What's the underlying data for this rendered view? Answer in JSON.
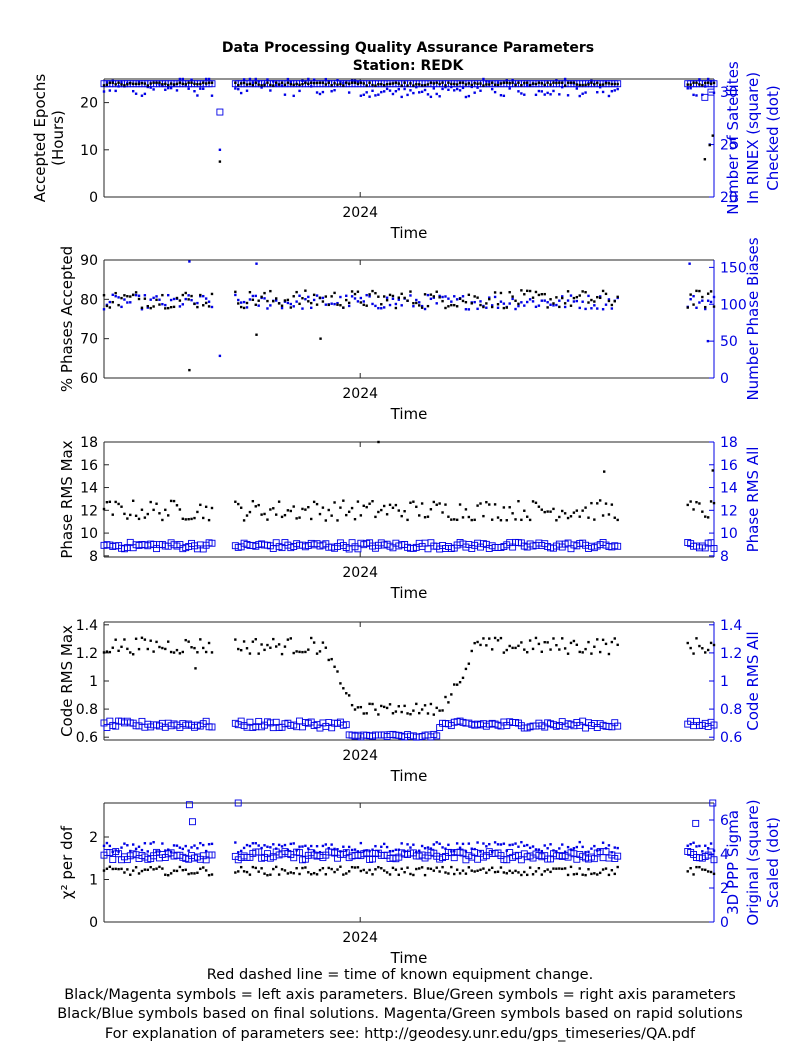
{
  "title": "Data Processing Quality Assurance Parameters",
  "subtitle": "Station: REDK",
  "footer_lines": [
    "Red dashed line = time of known equipment change.",
    "Black/Magenta symbols = left axis parameters. Blue/Green symbols = right axis parameters",
    "Black/Blue symbols based on final solutions.  Magenta/Green symbols based on rapid solutions",
    "For explanation of parameters see: http://geodesy.unr.edu/gps_timeseries/QA.pdf"
  ],
  "colors": {
    "left": "#000000",
    "right": "#0000e6",
    "axis": "#000000",
    "right_axis": "#0000e6"
  },
  "chart_data": [
    {
      "type": "scatter",
      "x_tick_label": "2024",
      "xlabel": "Time",
      "ylabel_left": [
        "Accepted Epochs",
        "(Hours)"
      ],
      "ylabel_right": [
        "Number of Satellites",
        "In RINEX (square)",
        "Checked (dot)"
      ],
      "ylim_left": [
        0,
        25
      ],
      "yticks_left": [
        0,
        10,
        20
      ],
      "ylim_right": [
        20,
        31.25
      ],
      "yticks_right": [
        20,
        25,
        30
      ],
      "segments": [
        [
          0.0,
          0.38
        ],
        [
          0.43,
          1.0
        ],
        [
          0.455,
          1.0
        ],
        [
          0.0,
          0.0
        ]
      ],
      "left_series": {
        "name": "",
        "marker": "dot",
        "base": 24,
        "noise": 0.4,
        "dips": [
          [
            0.19,
            7.5
          ],
          [
            0.985,
            8
          ],
          [
            0.993,
            11
          ],
          [
            0.998,
            13
          ]
        ]
      },
      "right_series": [
        {
          "name": "",
          "marker": "square",
          "base": 30.8,
          "noise": 0.0,
          "dips": [
            [
              0.19,
              28.1
            ],
            [
              0.985,
              29.5
            ],
            [
              0.995,
              30
            ]
          ]
        },
        {
          "name": "",
          "marker": "dot",
          "base": 30.5,
          "noise": 0.9,
          "dips": [
            [
              0.19,
              24.5
            ],
            [
              0.993,
              25
            ]
          ]
        }
      ]
    },
    {
      "type": "scatter",
      "x_tick_label": "2024",
      "xlabel": "Time",
      "ylabel_left": [
        "% Phases Accepted"
      ],
      "ylabel_right": [
        "Number Phase Biases"
      ],
      "ylim_left": [
        60,
        90
      ],
      "yticks_left": [
        60,
        70,
        80,
        90
      ],
      "ylim_right": [
        0,
        160
      ],
      "yticks_right": [
        0,
        50,
        100,
        150
      ],
      "left_series": {
        "name": "",
        "marker": "dot",
        "base": 80,
        "noise": 2.3,
        "dips": [
          [
            0.14,
            62
          ],
          [
            0.25,
            71
          ],
          [
            0.355,
            70
          ]
        ]
      },
      "right_series": [
        {
          "name": "",
          "marker": "dot",
          "base": 103,
          "noise": 10,
          "dips": [
            [
              0.14,
              158
            ],
            [
              0.19,
              30
            ],
            [
              0.25,
              155
            ],
            [
              0.96,
              155
            ],
            [
              0.99,
              50
            ]
          ]
        }
      ]
    },
    {
      "type": "scatter",
      "x_tick_label": "2024",
      "xlabel": "Time",
      "ylabel_left": [
        "Phase RMS Max"
      ],
      "ylabel_right": [
        "Phase RMS All"
      ],
      "ylim_left": [
        7.9,
        18
      ],
      "yticks_left": [
        8,
        10,
        12,
        14,
        16,
        18
      ],
      "ylim_right": [
        7.9,
        18
      ],
      "yticks_right": [
        8,
        10,
        12,
        14,
        16,
        18
      ],
      "left_series": {
        "name": "",
        "marker": "dot",
        "base": 12,
        "noise": 0.9,
        "dips": [
          [
            0.45,
            18
          ],
          [
            0.82,
            15.4
          ],
          [
            0.998,
            15.5
          ]
        ]
      },
      "right_series": [
        {
          "name": "",
          "marker": "square",
          "base": 8.9,
          "noise": 0.3,
          "dips": []
        }
      ]
    },
    {
      "type": "scatter",
      "x_tick_label": "2024",
      "xlabel": "Time",
      "ylabel_left": [
        "Code RMS Max"
      ],
      "ylabel_right": [
        "Code RMS All"
      ],
      "ylim_left": [
        0.58,
        1.42
      ],
      "yticks_left": [
        0.6,
        0.8,
        1.0,
        1.2,
        1.4
      ],
      "ylim_right": [
        0.58,
        1.42
      ],
      "yticks_right": [
        0.6,
        0.8,
        1.0,
        1.2,
        1.4
      ],
      "left_series": {
        "name": "",
        "marker": "dot",
        "base": 1.25,
        "noise": 0.06,
        "dips": [
          [
            0.15,
            1.09
          ]
        ]
      },
      "right_series": [
        {
          "name": "",
          "marker": "square",
          "base": 0.69,
          "noise": 0.025,
          "dips": []
        }
      ]
    },
    {
      "type": "scatter",
      "x_tick_label": "2024",
      "xlabel": "Time",
      "ylabel_left": [
        "χ² per dof"
      ],
      "ylabel_right": [
        "3D PPP Sigma",
        "Original (square)",
        "Scaled (dot)"
      ],
      "ylim_left": [
        0,
        2.8
      ],
      "yticks_left": [
        0,
        1,
        2
      ],
      "ylim_right": [
        0,
        7
      ],
      "yticks_right": [
        0,
        2,
        4,
        6
      ],
      "left_series": {
        "name": "",
        "marker": "dot",
        "base": 1.2,
        "noise": 0.1,
        "dips": []
      },
      "right_series": [
        {
          "name": "",
          "marker": "square",
          "base": 3.9,
          "noise": 0.25,
          "dips": [
            [
              0.14,
              6.9
            ],
            [
              0.145,
              5.9
            ],
            [
              0.22,
              7
            ],
            [
              0.97,
              5.8
            ],
            [
              0.998,
              7
            ]
          ]
        },
        {
          "name": "",
          "marker": "dot",
          "base": 4.4,
          "noise": 0.3,
          "dips": []
        }
      ]
    }
  ]
}
